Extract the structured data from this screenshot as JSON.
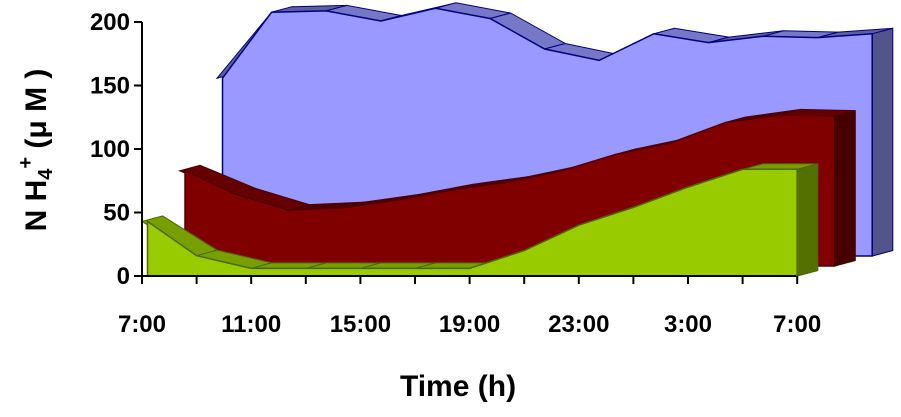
{
  "chart_data": {
    "type": "area",
    "style": "3d-ribbon",
    "x": [
      "7:00",
      "9:00",
      "11:00",
      "13:00",
      "15:00",
      "17:00",
      "19:00",
      "21:00",
      "23:00",
      "1:00",
      "3:00",
      "5:00",
      "7:00"
    ],
    "x_tick_labels": [
      "7:00",
      "11:00",
      "15:00",
      "19:00",
      "23:00",
      "3:00",
      "7:00"
    ],
    "y_ticks": [
      0,
      50,
      100,
      150,
      200
    ],
    "ylim": [
      0,
      200
    ],
    "xlabel": "Time (h)",
    "ylabel": {
      "base": "N H",
      "sub": "4",
      "sup": "+",
      "rest": " (μ M )"
    },
    "grid": false,
    "legend": "none",
    "series": [
      {
        "color": "#9999FF",
        "edge": "#000080",
        "values": [
          140,
          192,
          193,
          185,
          195,
          187,
          163,
          154,
          175,
          168,
          173,
          172,
          175
        ]
      },
      {
        "color": "#800000",
        "edge": "#4d0000",
        "values": [
          75,
          57,
          44,
          46,
          52,
          60,
          66,
          75,
          88,
          97,
          113,
          119,
          118
        ]
      },
      {
        "color": "#99CC00",
        "edge": "#4d6600",
        "values": [
          43,
          16,
          6,
          6,
          6,
          6,
          6,
          20,
          40,
          54,
          70,
          84,
          84
        ]
      }
    ]
  }
}
